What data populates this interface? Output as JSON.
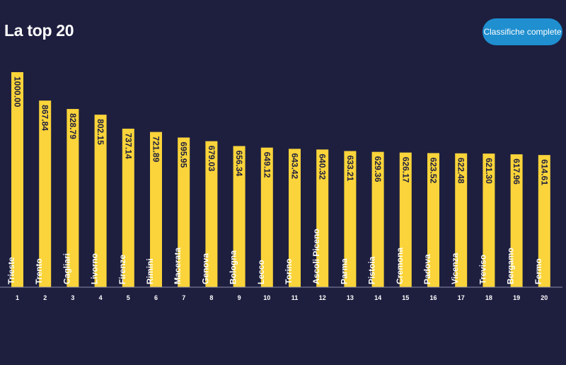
{
  "header": {
    "title": "La top 20",
    "button_label": "Classifiche complete"
  },
  "colors": {
    "background": "#1e1f3f",
    "bar": "#fad43a",
    "button": "#1f8fd0",
    "axis": "#8a8aa8"
  },
  "chart_data": {
    "type": "bar",
    "title": "La top 20",
    "categories": [
      "1",
      "2",
      "3",
      "4",
      "5",
      "6",
      "7",
      "8",
      "9",
      "10",
      "11",
      "12",
      "13",
      "14",
      "15",
      "16",
      "17",
      "18",
      "19",
      "20"
    ],
    "cities": [
      "Trieste",
      "Trento",
      "Cagliari",
      "Livorno",
      "Firenze",
      "Rimini",
      "Macerata",
      "Genova",
      "Bologna",
      "Lecco",
      "Torino",
      "Ascoli Piceno",
      "Parma",
      "Pistoia",
      "Cremona",
      "Padova",
      "Vicenza",
      "Treviso",
      "Bergamo",
      "Fermo"
    ],
    "values": [
      1000.0,
      867.84,
      828.79,
      802.15,
      737.14,
      721.89,
      695.95,
      679.03,
      656.34,
      649.12,
      643.42,
      640.32,
      633.21,
      629.36,
      626.17,
      623.52,
      622.48,
      621.3,
      617.96,
      614.61
    ],
    "value_labels": [
      "1000.00",
      "867.84",
      "828.79",
      "802.15",
      "737.14",
      "721.89",
      "695.95",
      "679.03",
      "656.34",
      "649.12",
      "643.42",
      "640.32",
      "633.21",
      "629.36",
      "626.17",
      "623.52",
      "622.48",
      "621.30",
      "617.96",
      "614.61"
    ],
    "ylim": [
      0,
      1000
    ],
    "grid": false
  }
}
